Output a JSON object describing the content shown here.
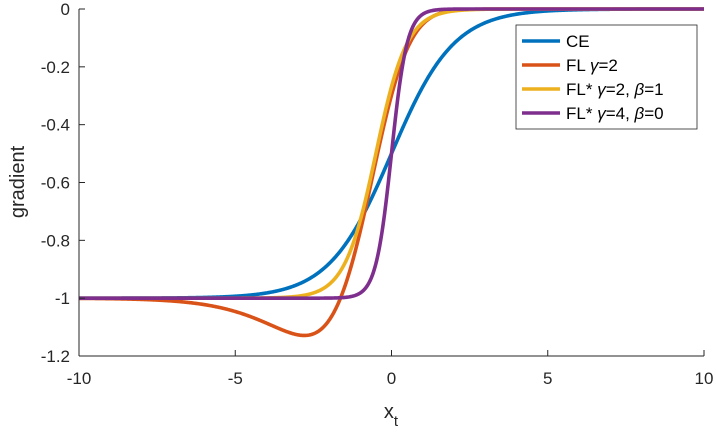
{
  "chart_data": {
    "type": "line",
    "xlabel": "x",
    "xlabel_sub": "t",
    "ylabel": "gradient",
    "xlim": [
      -10,
      10
    ],
    "ylim": [
      -1.2,
      0
    ],
    "x_ticks": [
      -10,
      -5,
      0,
      5,
      10
    ],
    "x_tick_labels": [
      "-10",
      "-5",
      "0",
      "5",
      "10"
    ],
    "y_ticks": [
      0,
      -0.2,
      -0.4,
      -0.6,
      -0.8,
      -1,
      -1.2
    ],
    "y_tick_labels": [
      "0",
      "-0.2",
      "-0.4",
      "-0.6",
      "-0.8",
      "-1",
      "-1.2"
    ],
    "grid": false,
    "legend_position": "top-right",
    "series": [
      {
        "name": "CE",
        "legend": {
          "base": "CE",
          "greek1": "",
          "eq1": "",
          "greek2": "",
          "eq2": ""
        },
        "color": "#0072BD",
        "model": "ce",
        "params": {}
      },
      {
        "name": "FL γ=2",
        "legend": {
          "base": "FL ",
          "greek1": "γ",
          "eq1": "=2",
          "greek2": "",
          "eq2": ""
        },
        "color": "#D95319",
        "model": "fl",
        "params": {
          "gamma": 2
        }
      },
      {
        "name": "FL* γ=2, β=1",
        "legend": {
          "base": "FL* ",
          "greek1": "γ",
          "eq1": "=2, ",
          "greek2": "β",
          "eq2": "=1"
        },
        "color": "#EDB120",
        "model": "flstar",
        "params": {
          "gamma": 2,
          "beta": 1
        }
      },
      {
        "name": "FL* γ=4, β=0",
        "legend": {
          "base": "FL* ",
          "greek1": "γ",
          "eq1": "=4, ",
          "greek2": "β",
          "eq2": "=0"
        },
        "color": "#7E2F8E",
        "model": "flstar",
        "params": {
          "gamma": 4,
          "beta": 0
        }
      }
    ]
  }
}
